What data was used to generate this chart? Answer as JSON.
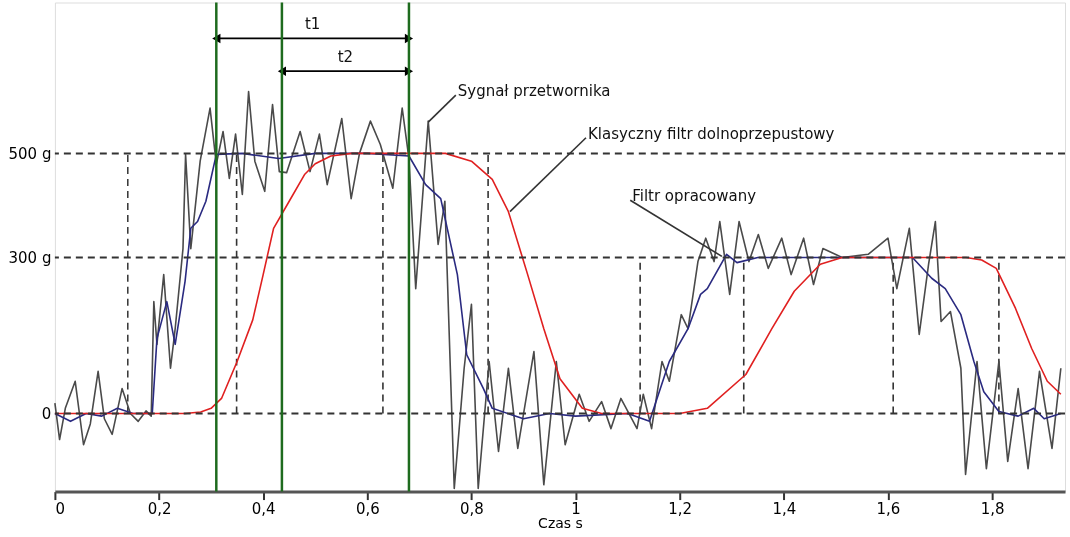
{
  "chart_data": {
    "type": "line",
    "xlabel": "Czas s",
    "xlim": [
      0,
      1.94
    ],
    "xticks": [
      {
        "value": 0,
        "label": "0"
      },
      {
        "value": 0.2,
        "label": "0,2"
      },
      {
        "value": 0.4,
        "label": "0,4"
      },
      {
        "value": 0.6,
        "label": "0,6"
      },
      {
        "value": 0.8,
        "label": "0,8"
      },
      {
        "value": 1,
        "label": "1"
      },
      {
        "value": 1.2,
        "label": "1,2"
      },
      {
        "value": 1.4,
        "label": "1,4"
      },
      {
        "value": 1.6,
        "label": "1,6"
      },
      {
        "value": 1.8,
        "label": "1,8"
      }
    ],
    "ylim": [
      -150,
      790
    ],
    "yticks": [
      {
        "value": 0,
        "label": "0"
      },
      {
        "value": 300,
        "label": "300 g"
      },
      {
        "value": 500,
        "label": "500 g"
      }
    ],
    "grid": false,
    "line_style": "solid",
    "ref_lines": [
      {
        "axis": "y",
        "value": 0,
        "color": "#333333",
        "line_style": "dashed"
      },
      {
        "axis": "y",
        "value": 300,
        "color": "#333333",
        "line_style": "dashed"
      },
      {
        "axis": "y",
        "value": 500,
        "color": "#333333",
        "line_style": "dashed"
      },
      {
        "axis": "x",
        "value": 0.31,
        "color": "#1e6b1e",
        "line_style": "solid"
      },
      {
        "axis": "x",
        "value": 0.436,
        "color": "#1e6b1e",
        "line_style": "solid"
      },
      {
        "axis": "x",
        "value": 0.68,
        "color": "#1e6b1e",
        "line_style": "solid"
      }
    ],
    "series": [
      {
        "line_style": "dashed",
        "color": "#333333",
        "x": [
          0.14,
          0.14
        ],
        "values": [
          0,
          500
        ]
      },
      {
        "line_style": "dashed",
        "color": "#333333",
        "x": [
          0.349,
          0.349
        ],
        "values": [
          0,
          500
        ]
      },
      {
        "line_style": "dashed",
        "color": "#333333",
        "x": [
          0.63,
          0.63
        ],
        "values": [
          0,
          500
        ]
      },
      {
        "line_style": "dashed",
        "color": "#333333",
        "x": [
          0.832,
          0.832
        ],
        "values": [
          0,
          500
        ]
      },
      {
        "line_style": "dashed",
        "color": "#333333",
        "x": [
          1.124,
          1.124
        ],
        "values": [
          0,
          300
        ]
      },
      {
        "line_style": "dashed",
        "color": "#333333",
        "x": [
          1.323,
          1.323
        ],
        "values": [
          0,
          300
        ]
      },
      {
        "line_style": "dashed",
        "color": "#333333",
        "x": [
          1.61,
          1.61
        ],
        "values": [
          0,
          300
        ]
      },
      {
        "line_style": "dashed",
        "color": "#333333",
        "x": [
          1.813,
          1.813
        ],
        "values": [
          0,
          300
        ]
      },
      {
        "color": "#4a4a4a",
        "x": [
          0,
          0.009,
          0.02,
          0.039,
          0.055,
          0.068,
          0.083,
          0.095,
          0.11,
          0.129,
          0.145,
          0.16,
          0.175,
          0.185,
          0.19,
          0.196,
          0.209,
          0.222,
          0.231,
          0.246,
          0.251,
          0.261,
          0.279,
          0.298,
          0.31,
          0.323,
          0.335,
          0.347,
          0.36,
          0.372,
          0.384,
          0.403,
          0.418,
          0.431,
          0.445,
          0.471,
          0.49,
          0.508,
          0.523,
          0.551,
          0.569,
          0.585,
          0.606,
          0.625,
          0.649,
          0.667,
          0.68,
          0.693,
          0.717,
          0.736,
          0.749,
          0.767,
          0.786,
          0.8,
          0.813,
          0.834,
          0.852,
          0.871,
          0.889,
          0.92,
          0.939,
          0.963,
          0.98,
          1.007,
          1.026,
          1.05,
          1.068,
          1.087,
          1.118,
          1.13,
          1.146,
          1.166,
          1.18,
          1.203,
          1.216,
          1.235,
          1.25,
          1.266,
          1.277,
          1.296,
          1.314,
          1.333,
          1.351,
          1.37,
          1.396,
          1.414,
          1.438,
          1.457,
          1.475,
          1.512,
          1.562,
          1.6,
          1.617,
          1.641,
          1.66,
          1.678,
          1.691,
          1.702,
          1.72,
          1.74,
          1.749,
          1.771,
          1.789,
          1.813,
          1.83,
          1.85,
          1.869,
          1.891,
          1.915,
          1.932
        ],
        "values": [
          20,
          -50,
          10,
          62,
          -60,
          -20,
          81,
          -10,
          -40,
          48,
          0,
          -15,
          5,
          -5,
          215,
          133,
          267,
          87,
          163,
          317,
          498,
          317,
          485,
          587,
          479,
          542,
          452,
          537,
          421,
          619,
          485,
          427,
          594,
          465,
          463,
          542,
          465,
          537,
          440,
          567,
          413,
          500,
          562,
          517,
          433,
          587,
          490,
          240,
          562,
          325,
          408,
          -144,
          87,
          210,
          -144,
          100,
          -73,
          87,
          -67,
          119,
          -137,
          100,
          -60,
          37,
          -15,
          23,
          -29,
          29,
          -29,
          37,
          -29,
          100,
          62,
          190,
          163,
          292,
          337,
          292,
          369,
          229,
          369,
          292,
          344,
          279,
          337,
          267,
          337,
          248,
          317,
          300,
          306,
          337,
          240,
          356,
          152,
          287,
          369,
          177,
          196,
          87,
          -117,
          100,
          -106,
          100,
          -92,
          48,
          -106,
          81,
          -67,
          87
        ]
      },
      {
        "color": "#2a2a80",
        "x": [
          0,
          0.03,
          0.06,
          0.09,
          0.12,
          0.15,
          0.187,
          0.196,
          0.215,
          0.231,
          0.25,
          0.261,
          0.274,
          0.29,
          0.31,
          0.36,
          0.43,
          0.5,
          0.6,
          0.68,
          0.712,
          0.741,
          0.773,
          0.791,
          0.823,
          0.84,
          0.9,
          0.95,
          1.0,
          1.1,
          1.142,
          1.18,
          1.216,
          1.24,
          1.253,
          1.29,
          1.31,
          1.35,
          1.5,
          1.647,
          1.684,
          1.71,
          1.74,
          1.765,
          1.784,
          1.813,
          1.85,
          1.88,
          1.9,
          1.932
        ],
        "values": [
          0,
          -15,
          0,
          -5,
          10,
          0,
          0,
          144,
          215,
          133,
          254,
          356,
          369,
          408,
          498,
          500,
          490,
          500,
          500,
          495,
          440,
          413,
          267,
          113,
          48,
          10,
          -10,
          0,
          -5,
          0,
          -15,
          100,
          163,
          229,
          240,
          306,
          290,
          300,
          300,
          300,
          260,
          240,
          190,
          100,
          42,
          4,
          -5,
          10,
          -10,
          0
        ]
      },
      {
        "color": "#e02020",
        "x": [
          0,
          0.25,
          0.28,
          0.3,
          0.32,
          0.35,
          0.38,
          0.4,
          0.42,
          0.45,
          0.48,
          0.5,
          0.53,
          0.57,
          0.75,
          0.8,
          0.84,
          0.871,
          0.908,
          0.939,
          0.97,
          1.013,
          1.05,
          1.2,
          1.253,
          1.327,
          1.377,
          1.42,
          1.47,
          1.512,
          1.75,
          1.78,
          1.808,
          1.845,
          1.876,
          1.906,
          1.932
        ],
        "values": [
          0,
          0,
          3,
          10,
          29,
          100,
          180,
          267,
          356,
          408,
          460,
          480,
          495,
          500,
          500,
          485,
          450,
          388,
          267,
          163,
          67,
          10,
          0,
          0,
          10,
          75,
          163,
          235,
          287,
          300,
          300,
          295,
          279,
          202,
          125,
          62,
          37
        ]
      },
      {
        "color": "#000000",
        "marker": "triangle",
        "x": [
          0.31,
          0.68
        ],
        "values": [
          721,
          721
        ]
      },
      {
        "color": "#000000",
        "marker": "triangle",
        "x": [
          0.436,
          0.68
        ],
        "values": [
          658,
          658
        ]
      },
      {
        "color": "#333333",
        "x": [
          0.717,
          0.77
        ],
        "values": [
          560,
          612
        ]
      },
      {
        "color": "#333333",
        "x": [
          0.874,
          1.02
        ],
        "values": [
          388,
          530
        ]
      },
      {
        "color": "#333333",
        "x": [
          1.281,
          1.105
        ],
        "values": [
          302,
          410
        ]
      }
    ],
    "annotations": [
      "t1",
      "t2",
      "Sygnał przetwornika",
      "Klasyczny filtr dolnoprzepustowy",
      "Filtr opracowany"
    ]
  }
}
